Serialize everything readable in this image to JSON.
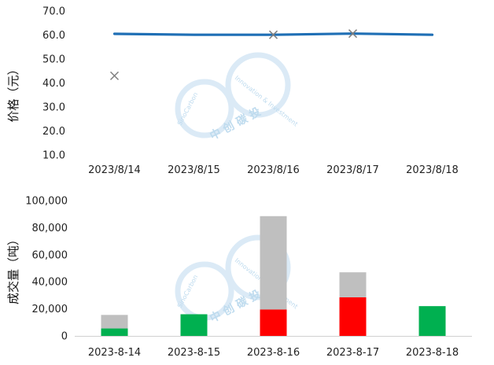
{
  "watermark": {
    "en1": "SinoCarbon",
    "en2": "Innovation & Investment",
    "cn": "中 创 碳 投"
  },
  "chart_data": [
    {
      "type": "line",
      "ylabel": "价格（元）",
      "categories": [
        "2023/8/14",
        "2023/8/15",
        "2023/8/16",
        "2023/8/17",
        "2023/8/18"
      ],
      "ylim": [
        10,
        70
      ],
      "yticks": [
        "10.0",
        "20.0",
        "30.0",
        "40.0",
        "50.0",
        "60.0",
        "70.0"
      ],
      "series": [
        {
          "kind": "line",
          "color": "#1f6fb5",
          "values": [
            60.5,
            60.1,
            60.1,
            60.6,
            60.1
          ]
        },
        {
          "kind": "marker-x",
          "color": "#7f7f7f",
          "values": [
            43.0,
            null,
            60.1,
            60.6,
            null
          ]
        }
      ],
      "grid": false,
      "legend": "none"
    },
    {
      "type": "bar",
      "ylabel": "成交量（吨）",
      "categories": [
        "2023-8-14",
        "2023-8-15",
        "2023-8-16",
        "2023-8-17",
        "2023-8-18"
      ],
      "ylim": [
        0,
        100000
      ],
      "yticks": [
        "0",
        "20,000",
        "40,000",
        "60,000",
        "80,000",
        "100,000"
      ],
      "stacked": true,
      "series": [
        {
          "color": "#00b050",
          "values": [
            5500,
            16000,
            0,
            0,
            22000
          ]
        },
        {
          "color": "#ff0000",
          "values": [
            0,
            0,
            19500,
            28500,
            0
          ]
        },
        {
          "color": "#bfbfbf",
          "values": [
            10000,
            0,
            69000,
            18500,
            0
          ]
        }
      ],
      "grid": false,
      "legend": "none"
    }
  ]
}
